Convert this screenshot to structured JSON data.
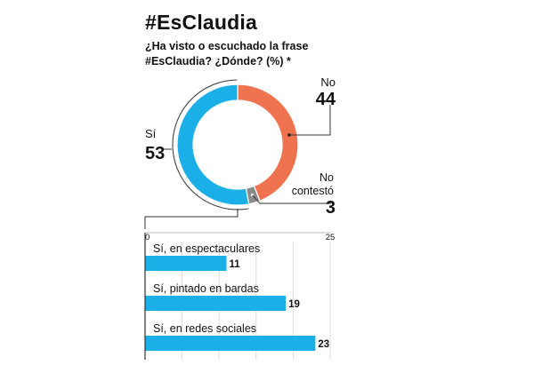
{
  "header": {
    "title": "#EsClaudia",
    "subtitle": "¿Ha visto o escuchado la frase #EsClaudia? ¿Dónde? (%) *"
  },
  "colors": {
    "blue": "#1aafe6",
    "orange": "#f0734f",
    "gray": "#8a8a8a",
    "text": "#111111"
  },
  "chart_data": [
    {
      "type": "pie",
      "style": "donut",
      "slices": [
        {
          "label": "No",
          "value": 44,
          "color": "#f0734f"
        },
        {
          "label": "No contestó",
          "value": 3,
          "color": "#8a8a8a"
        },
        {
          "label": "Sí",
          "value": 53,
          "color": "#1aafe6"
        }
      ]
    },
    {
      "type": "bar",
      "orientation": "horizontal",
      "categories": [
        "Sí, en espectaculares",
        "Sí, pintado en bardas",
        "Sí, en redes sociales"
      ],
      "values": [
        11,
        19,
        23
      ],
      "xlim": [
        0,
        25
      ],
      "xticks": [
        0,
        25
      ],
      "grid": true,
      "bar_color": "#1aafe6"
    }
  ]
}
